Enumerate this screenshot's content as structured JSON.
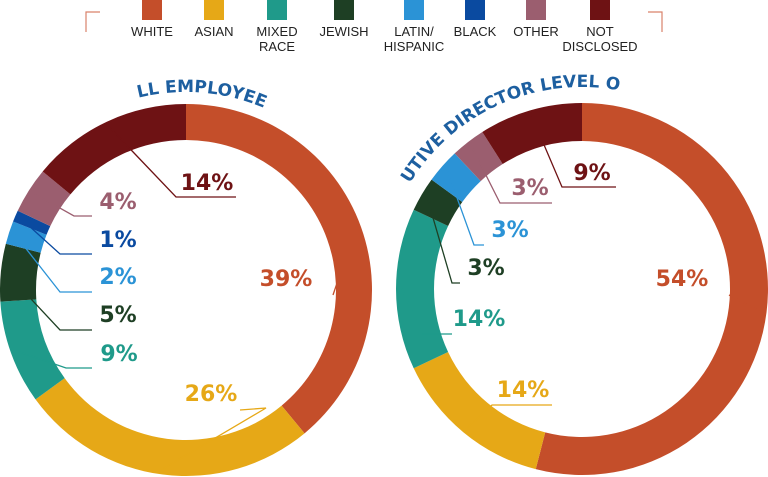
{
  "legend": [
    {
      "label": "WHITE",
      "color": "#c44e2a"
    },
    {
      "label": "ASIAN",
      "color": "#e6a817"
    },
    {
      "label_lines": [
        "MIXED",
        "RACE"
      ],
      "color": "#1f9a8a"
    },
    {
      "label": "JEWISH",
      "color": "#1e3f24"
    },
    {
      "label_lines": [
        "LATIN/",
        "HISPANIC"
      ],
      "color": "#2b93d6"
    },
    {
      "label": "BLACK",
      "color": "#0a4aa0"
    },
    {
      "label": "OTHER",
      "color": "#9b5e6f"
    },
    {
      "label_lines": [
        "NOT",
        "DISCLOSED"
      ],
      "color": "#6e1214"
    }
  ],
  "chart_data": [
    {
      "type": "pie",
      "title": "ALL EMPLOYEES",
      "categories": [
        "WHITE",
        "ASIAN",
        "MIXED RACE",
        "JEWISH",
        "LATIN/ HISPANIC",
        "BLACK",
        "OTHER",
        "NOT DISCLOSED"
      ],
      "values": [
        39,
        26,
        9,
        5,
        2,
        1,
        4,
        14
      ],
      "labels": [
        "39%",
        "26%",
        "9%",
        "5%",
        "2%",
        "1%",
        "4%",
        "14%"
      ]
    },
    {
      "type": "pie",
      "title": "VP/EXECUTIVE DIRECTOR LEVEL OR ABOVE",
      "categories": [
        "WHITE",
        "ASIAN",
        "MIXED RACE",
        "JEWISH",
        "LATIN/ HISPANIC",
        "OTHER",
        "NOT DISCLOSED"
      ],
      "values": [
        54,
        14,
        14,
        3,
        3,
        3,
        9
      ],
      "labels": [
        "54%",
        "14%",
        "14%",
        "3%",
        "3%",
        "3%",
        "9%"
      ]
    }
  ]
}
